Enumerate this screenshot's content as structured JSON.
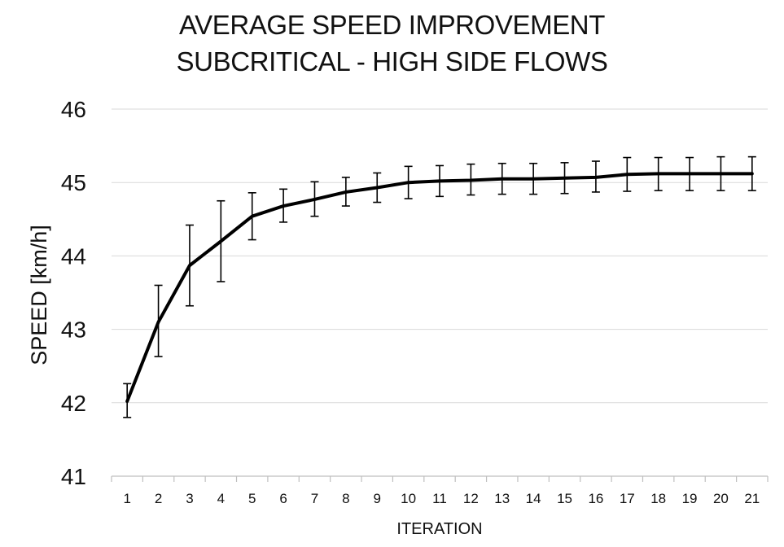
{
  "chart_data": {
    "type": "line",
    "title_line1": "AVERAGE SPEED IMPROVEMENT",
    "title_line2": "SUBCRITICAL - HIGH SIDE FLOWS",
    "xlabel": "ITERATION",
    "ylabel": "SPEED  [km/h]",
    "ylim": [
      41,
      46
    ],
    "yticks": [
      "41",
      "42",
      "43",
      "44",
      "45",
      "46"
    ],
    "categories": [
      "1",
      "2",
      "3",
      "4",
      "5",
      "6",
      "7",
      "8",
      "9",
      "10",
      "11",
      "12",
      "13",
      "14",
      "15",
      "16",
      "17",
      "18",
      "19",
      "20",
      "21"
    ],
    "grid": "horizontal",
    "legend": "none",
    "series": [
      {
        "values": [
          42.02,
          43.1,
          43.87,
          44.2,
          44.54,
          44.68,
          44.77,
          44.87,
          44.93,
          45.0,
          45.02,
          45.03,
          45.05,
          45.05,
          45.06,
          45.07,
          45.11,
          45.12,
          45.12,
          45.12,
          45.12
        ],
        "error_upper": [
          42.26,
          43.6,
          44.42,
          44.75,
          44.86,
          44.91,
          45.01,
          45.07,
          45.13,
          45.22,
          45.23,
          45.25,
          45.26,
          45.26,
          45.27,
          45.29,
          45.34,
          45.34,
          45.34,
          45.35,
          45.35
        ],
        "error_lower": [
          41.8,
          42.63,
          43.32,
          43.65,
          44.22,
          44.46,
          44.54,
          44.68,
          44.73,
          44.78,
          44.81,
          44.83,
          44.84,
          44.84,
          44.85,
          44.87,
          44.88,
          44.89,
          44.89,
          44.89,
          44.89
        ]
      }
    ]
  },
  "colors": {
    "line": "#000000",
    "grid": "#d9d9d9",
    "text": "#111111",
    "axis": "#bfbfbf"
  }
}
